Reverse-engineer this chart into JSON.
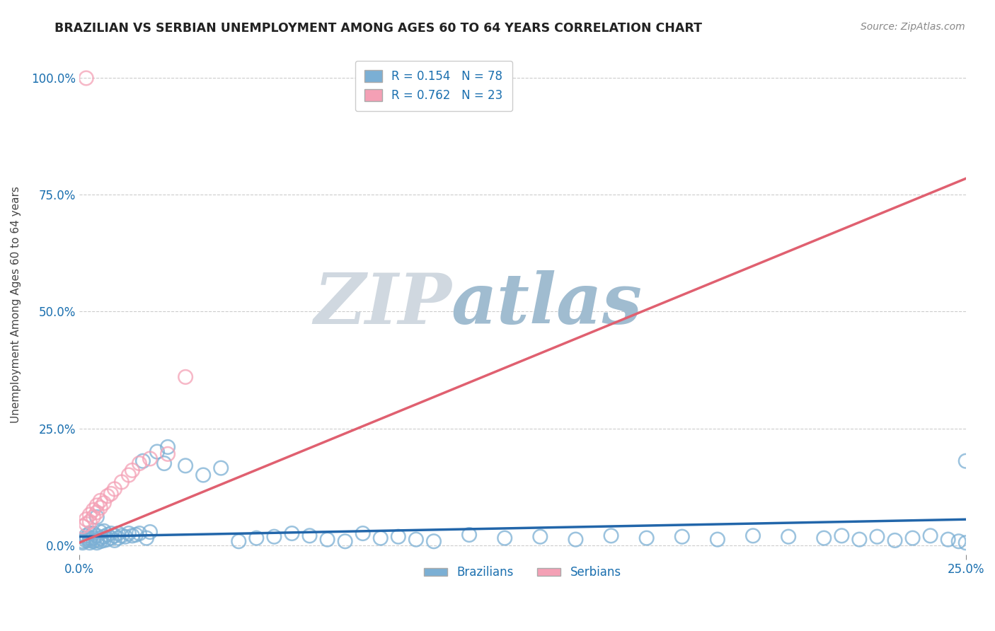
{
  "title": "BRAZILIAN VS SERBIAN UNEMPLOYMENT AMONG AGES 60 TO 64 YEARS CORRELATION CHART",
  "source": "Source: ZipAtlas.com",
  "ylabel": "Unemployment Among Ages 60 to 64 years",
  "xlim": [
    0.0,
    0.25
  ],
  "ylim": [
    -0.02,
    1.05
  ],
  "xticks": [
    0.0,
    0.25
  ],
  "yticks": [
    0.0,
    0.25,
    0.5,
    0.75,
    1.0
  ],
  "xticklabels": [
    "0.0%",
    "25.0%"
  ],
  "yticklabels": [
    "0.0%",
    "25.0%",
    "50.0%",
    "75.0%",
    "100.0%"
  ],
  "brazil_color": "#7bafd4",
  "serbia_color": "#f4a0b5",
  "brazil_line_color": "#2266aa",
  "serbia_line_color": "#e06070",
  "brazil_R": 0.154,
  "brazil_N": 78,
  "serbia_R": 0.762,
  "serbia_N": 23,
  "watermark_zip": "ZIP",
  "watermark_atlas": "atlas",
  "watermark_color_zip": "#d0d8e0",
  "watermark_color_atlas": "#a0bcd0",
  "title_color": "#222222",
  "axis_label_color": "#1a6faf",
  "tick_color": "#1a6faf",
  "grid_color": "#cccccc",
  "brazil_points_x": [
    0.001,
    0.001,
    0.002,
    0.002,
    0.002,
    0.003,
    0.003,
    0.003,
    0.003,
    0.004,
    0.004,
    0.004,
    0.005,
    0.005,
    0.005,
    0.006,
    0.006,
    0.006,
    0.007,
    0.007,
    0.007,
    0.008,
    0.008,
    0.009,
    0.009,
    0.01,
    0.01,
    0.011,
    0.011,
    0.012,
    0.013,
    0.014,
    0.015,
    0.016,
    0.017,
    0.018,
    0.019,
    0.02,
    0.022,
    0.024,
    0.025,
    0.03,
    0.035,
    0.04,
    0.045,
    0.05,
    0.055,
    0.06,
    0.065,
    0.07,
    0.075,
    0.08,
    0.085,
    0.09,
    0.095,
    0.1,
    0.11,
    0.12,
    0.13,
    0.14,
    0.15,
    0.16,
    0.17,
    0.18,
    0.19,
    0.2,
    0.21,
    0.215,
    0.22,
    0.225,
    0.23,
    0.235,
    0.24,
    0.245,
    0.248,
    0.25,
    0.25,
    0.005
  ],
  "brazil_points_y": [
    0.005,
    0.008,
    0.01,
    0.015,
    0.02,
    0.005,
    0.01,
    0.015,
    0.025,
    0.008,
    0.015,
    0.025,
    0.005,
    0.01,
    0.02,
    0.008,
    0.015,
    0.028,
    0.01,
    0.018,
    0.03,
    0.012,
    0.022,
    0.015,
    0.025,
    0.01,
    0.02,
    0.015,
    0.025,
    0.02,
    0.018,
    0.025,
    0.02,
    0.022,
    0.025,
    0.18,
    0.015,
    0.028,
    0.2,
    0.175,
    0.21,
    0.17,
    0.15,
    0.165,
    0.008,
    0.015,
    0.018,
    0.025,
    0.02,
    0.012,
    0.008,
    0.025,
    0.015,
    0.018,
    0.012,
    0.008,
    0.022,
    0.015,
    0.018,
    0.012,
    0.02,
    0.015,
    0.018,
    0.012,
    0.02,
    0.018,
    0.015,
    0.02,
    0.012,
    0.018,
    0.01,
    0.015,
    0.02,
    0.012,
    0.008,
    0.005,
    0.18,
    0.06
  ],
  "serbia_points_x": [
    0.001,
    0.002,
    0.002,
    0.003,
    0.003,
    0.004,
    0.004,
    0.005,
    0.005,
    0.006,
    0.006,
    0.007,
    0.008,
    0.009,
    0.01,
    0.012,
    0.014,
    0.015,
    0.017,
    0.02,
    0.025,
    0.03,
    0.002
  ],
  "serbia_points_y": [
    0.04,
    0.045,
    0.055,
    0.05,
    0.065,
    0.06,
    0.075,
    0.07,
    0.085,
    0.08,
    0.095,
    0.09,
    0.105,
    0.11,
    0.12,
    0.135,
    0.15,
    0.16,
    0.175,
    0.185,
    0.195,
    0.36,
    1.0
  ],
  "brazil_line_x": [
    0.0,
    0.25
  ],
  "brazil_line_y": [
    0.018,
    0.055
  ],
  "serbia_line_x": [
    0.0,
    0.25
  ],
  "serbia_line_y": [
    0.005,
    0.785
  ]
}
